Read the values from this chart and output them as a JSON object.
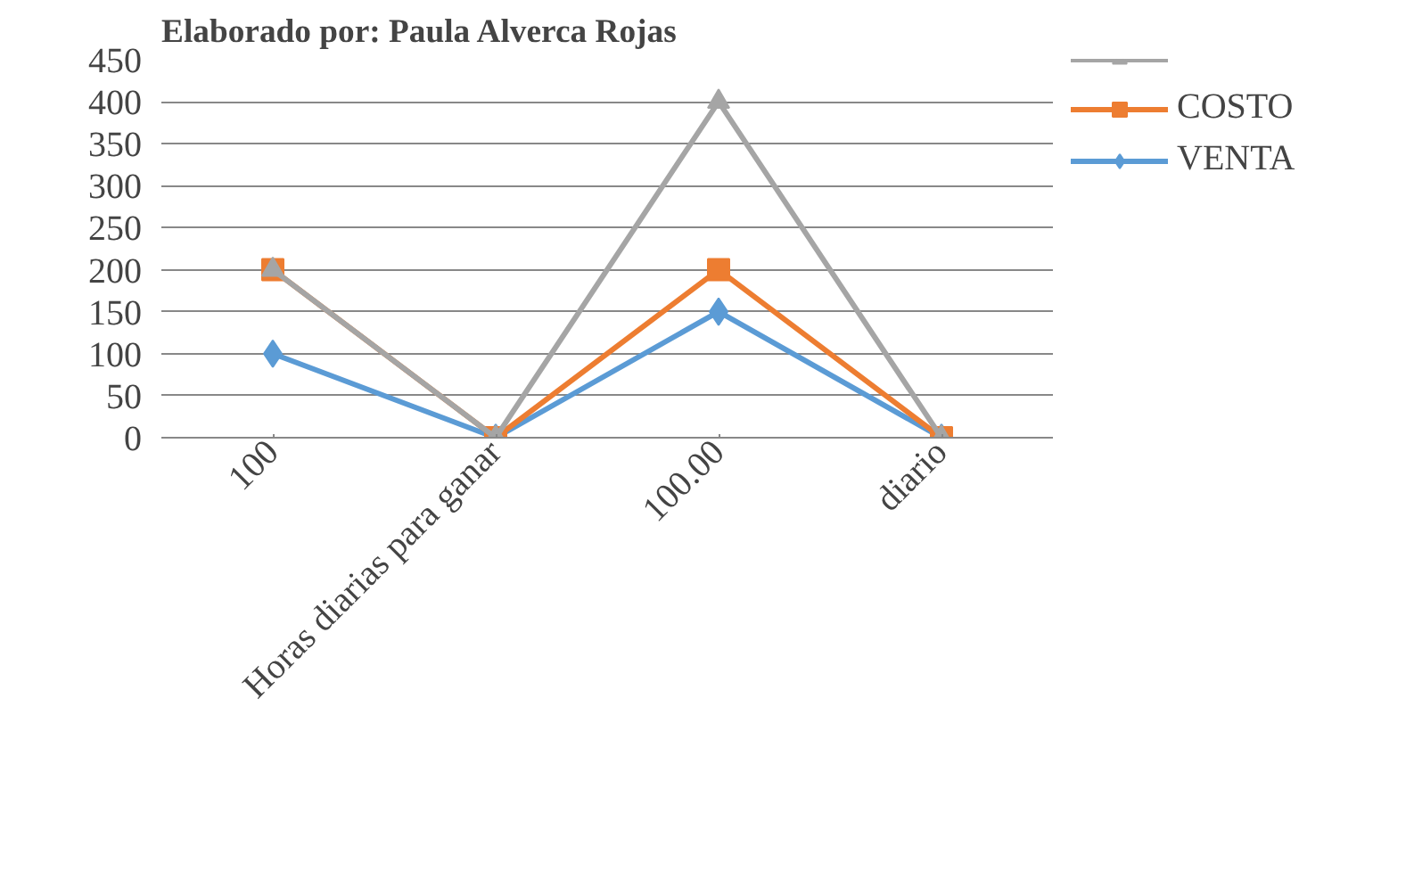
{
  "chart_data": {
    "type": "line",
    "title": "Elaborado por: Paula Alverca Rojas",
    "categories": [
      "100",
      "Horas diarias para ganar",
      "100.00",
      "diario"
    ],
    "series": [
      {
        "color": "#a5a5a5",
        "marker": "triangle",
        "values": [
          200,
          0,
          400,
          0
        ]
      },
      {
        "name": "COSTO",
        "color": "#ed7d31",
        "marker": "square",
        "values": [
          200,
          0,
          200,
          0
        ]
      },
      {
        "name": "VENTA",
        "color": "#5b9bd5",
        "marker": "diamond",
        "values": [
          100,
          0,
          150,
          0
        ]
      }
    ],
    "ylim": [
      0,
      450
    ],
    "yticks": [
      0,
      50,
      100,
      150,
      200,
      250,
      300,
      350,
      400,
      450
    ],
    "grid": "y",
    "legend": "right"
  }
}
